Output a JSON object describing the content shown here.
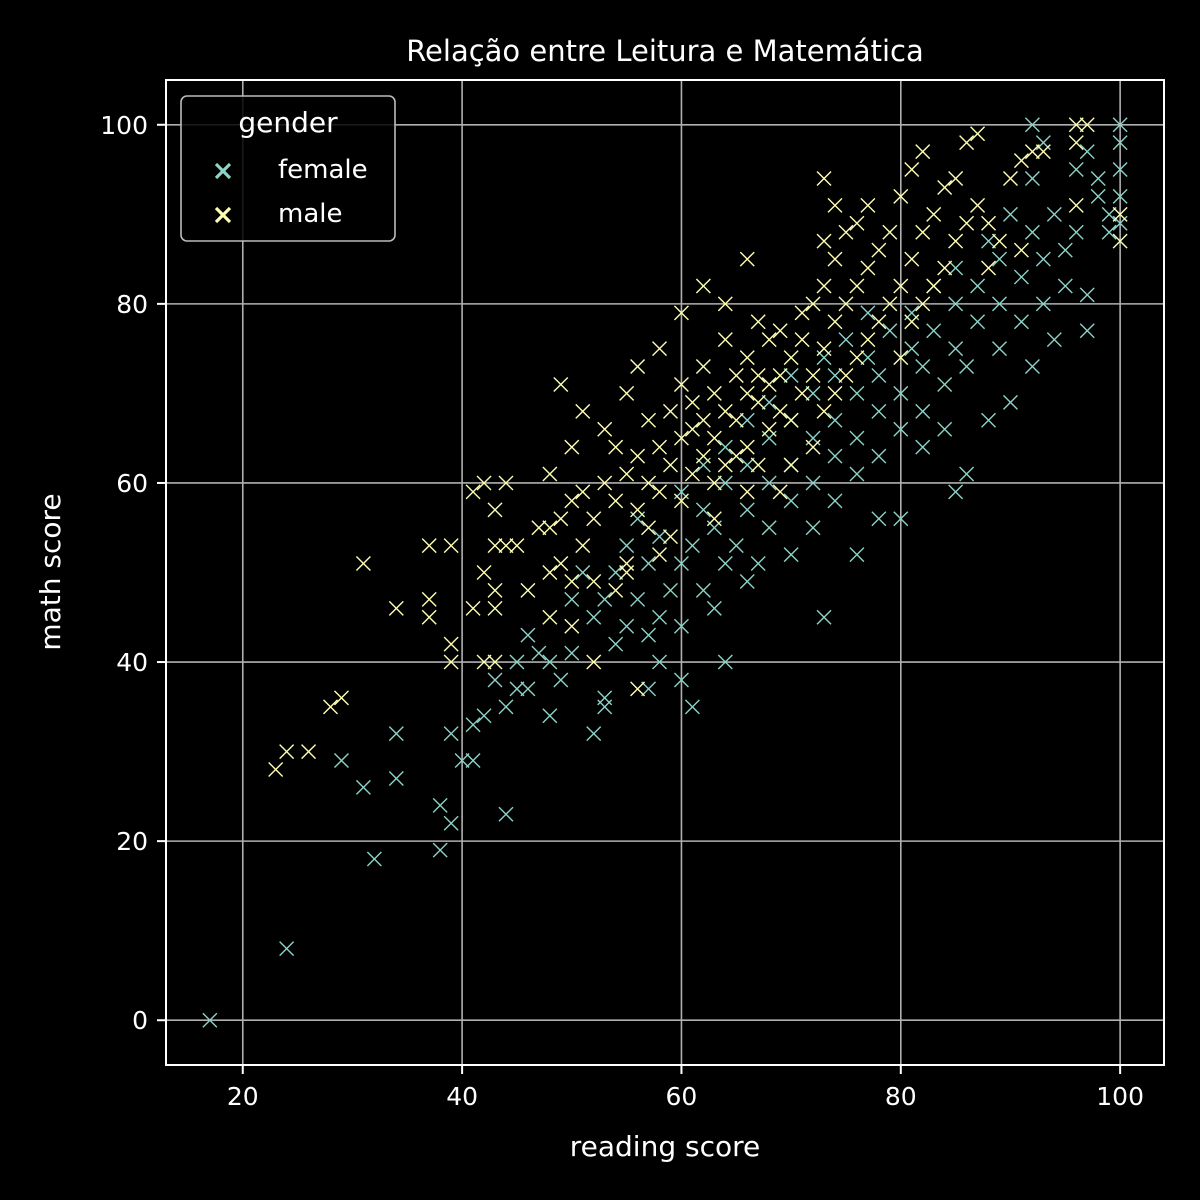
{
  "chart_data": {
    "type": "scatter",
    "title": "Relação entre Leitura e Matemática",
    "xlabel": "reading score",
    "ylabel": "math score",
    "xlim": [
      13,
      104
    ],
    "ylim": [
      -5,
      105
    ],
    "xticks": [
      20,
      40,
      60,
      80,
      100
    ],
    "yticks": [
      0,
      20,
      40,
      60,
      80,
      100
    ],
    "grid": true,
    "marker": "x",
    "legend": {
      "title": "gender",
      "placement": "top-left",
      "entries": [
        "female",
        "male"
      ]
    },
    "series": [
      {
        "name": "female",
        "color": "#8dd3c7",
        "points": [
          [
            17,
            0
          ],
          [
            24,
            8
          ],
          [
            32,
            18
          ],
          [
            38,
            19
          ],
          [
            39,
            22
          ],
          [
            44,
            23
          ],
          [
            38,
            24
          ],
          [
            31,
            26
          ],
          [
            34,
            27
          ],
          [
            29,
            29
          ],
          [
            40,
            29
          ],
          [
            41,
            29
          ],
          [
            34,
            32
          ],
          [
            39,
            32
          ],
          [
            52,
            32
          ],
          [
            41,
            33
          ],
          [
            42,
            34
          ],
          [
            48,
            34
          ],
          [
            44,
            35
          ],
          [
            53,
            35
          ],
          [
            61,
            35
          ],
          [
            53,
            36
          ],
          [
            45,
            37
          ],
          [
            46,
            37
          ],
          [
            57,
            37
          ],
          [
            43,
            38
          ],
          [
            49,
            38
          ],
          [
            60,
            38
          ],
          [
            45,
            40
          ],
          [
            48,
            40
          ],
          [
            58,
            40
          ],
          [
            64,
            40
          ],
          [
            47,
            41
          ],
          [
            50,
            41
          ],
          [
            54,
            42
          ],
          [
            57,
            43
          ],
          [
            46,
            43
          ],
          [
            55,
            44
          ],
          [
            60,
            44
          ],
          [
            52,
            45
          ],
          [
            58,
            45
          ],
          [
            73,
            45
          ],
          [
            63,
            46
          ],
          [
            50,
            47
          ],
          [
            53,
            47
          ],
          [
            56,
            47
          ],
          [
            59,
            48
          ],
          [
            62,
            48
          ],
          [
            66,
            49
          ],
          [
            51,
            50
          ],
          [
            54,
            50
          ],
          [
            57,
            51
          ],
          [
            60,
            51
          ],
          [
            64,
            51
          ],
          [
            67,
            51
          ],
          [
            70,
            52
          ],
          [
            55,
            53
          ],
          [
            61,
            53
          ],
          [
            65,
            53
          ],
          [
            76,
            52
          ],
          [
            58,
            54
          ],
          [
            63,
            55
          ],
          [
            68,
            55
          ],
          [
            72,
            55
          ],
          [
            78,
            56
          ],
          [
            56,
            56
          ],
          [
            62,
            57
          ],
          [
            66,
            57
          ],
          [
            70,
            58
          ],
          [
            74,
            58
          ],
          [
            80,
            56
          ],
          [
            85,
            59
          ],
          [
            60,
            59
          ],
          [
            64,
            60
          ],
          [
            68,
            60
          ],
          [
            72,
            60
          ],
          [
            76,
            61
          ],
          [
            86,
            61
          ],
          [
            62,
            62
          ],
          [
            66,
            62
          ],
          [
            70,
            62
          ],
          [
            74,
            63
          ],
          [
            78,
            63
          ],
          [
            82,
            64
          ],
          [
            64,
            64
          ],
          [
            68,
            65
          ],
          [
            72,
            65
          ],
          [
            76,
            65
          ],
          [
            80,
            66
          ],
          [
            84,
            66
          ],
          [
            66,
            67
          ],
          [
            70,
            67
          ],
          [
            74,
            67
          ],
          [
            78,
            68
          ],
          [
            82,
            68
          ],
          [
            88,
            67
          ],
          [
            68,
            69
          ],
          [
            72,
            70
          ],
          [
            76,
            70
          ],
          [
            80,
            70
          ],
          [
            84,
            71
          ],
          [
            90,
            69
          ],
          [
            70,
            72
          ],
          [
            74,
            72
          ],
          [
            78,
            72
          ],
          [
            82,
            73
          ],
          [
            86,
            73
          ],
          [
            92,
            73
          ],
          [
            73,
            74
          ],
          [
            77,
            74
          ],
          [
            81,
            75
          ],
          [
            85,
            75
          ],
          [
            89,
            75
          ],
          [
            94,
            76
          ],
          [
            75,
            76
          ],
          [
            79,
            77
          ],
          [
            83,
            77
          ],
          [
            87,
            78
          ],
          [
            91,
            78
          ],
          [
            97,
            77
          ],
          [
            77,
            79
          ],
          [
            81,
            79
          ],
          [
            85,
            80
          ],
          [
            89,
            80
          ],
          [
            93,
            80
          ],
          [
            95,
            82
          ],
          [
            83,
            82
          ],
          [
            87,
            82
          ],
          [
            91,
            83
          ],
          [
            97,
            81
          ],
          [
            85,
            84
          ],
          [
            89,
            85
          ],
          [
            93,
            85
          ],
          [
            95,
            86
          ],
          [
            88,
            87
          ],
          [
            92,
            88
          ],
          [
            96,
            88
          ],
          [
            99,
            88
          ],
          [
            90,
            90
          ],
          [
            94,
            90
          ],
          [
            98,
            92
          ],
          [
            100,
            92
          ],
          [
            92,
            94
          ],
          [
            96,
            95
          ],
          [
            100,
            95
          ],
          [
            93,
            98
          ],
          [
            97,
            97
          ],
          [
            100,
            98
          ],
          [
            92,
            100
          ],
          [
            100,
            100
          ],
          [
            100,
            89
          ],
          [
            98,
            94
          ],
          [
            99,
            90
          ]
        ]
      },
      {
        "name": "male",
        "color": "#ffffb3",
        "points": [
          [
            23,
            28
          ],
          [
            24,
            30
          ],
          [
            26,
            30
          ],
          [
            28,
            35
          ],
          [
            29,
            36
          ],
          [
            31,
            51
          ],
          [
            34,
            46
          ],
          [
            37,
            45
          ],
          [
            37,
            47
          ],
          [
            37,
            53
          ],
          [
            39,
            40
          ],
          [
            39,
            42
          ],
          [
            39,
            53
          ],
          [
            41,
            46
          ],
          [
            41,
            59
          ],
          [
            42,
            40
          ],
          [
            42,
            50
          ],
          [
            42,
            60
          ],
          [
            43,
            40
          ],
          [
            43,
            46
          ],
          [
            43,
            48
          ],
          [
            43,
            53
          ],
          [
            43,
            57
          ],
          [
            44,
            53
          ],
          [
            44,
            60
          ],
          [
            45,
            53
          ],
          [
            46,
            48
          ],
          [
            47,
            55
          ],
          [
            48,
            45
          ],
          [
            48,
            50
          ],
          [
            48,
            55
          ],
          [
            48,
            61
          ],
          [
            49,
            51
          ],
          [
            49,
            56
          ],
          [
            49,
            71
          ],
          [
            50,
            44
          ],
          [
            50,
            49
          ],
          [
            50,
            58
          ],
          [
            50,
            64
          ],
          [
            51,
            53
          ],
          [
            51,
            59
          ],
          [
            51,
            68
          ],
          [
            52,
            40
          ],
          [
            52,
            49
          ],
          [
            52,
            56
          ],
          [
            53,
            60
          ],
          [
            53,
            66
          ],
          [
            54,
            48
          ],
          [
            54,
            58
          ],
          [
            54,
            64
          ],
          [
            55,
            51
          ],
          [
            55,
            61
          ],
          [
            55,
            70
          ],
          [
            56,
            37
          ],
          [
            56,
            57
          ],
          [
            56,
            63
          ],
          [
            56,
            73
          ],
          [
            57,
            55
          ],
          [
            57,
            60
          ],
          [
            57,
            67
          ],
          [
            58,
            59
          ],
          [
            58,
            64
          ],
          [
            58,
            75
          ],
          [
            59,
            54
          ],
          [
            59,
            62
          ],
          [
            59,
            68
          ],
          [
            60,
            58
          ],
          [
            60,
            65
          ],
          [
            60,
            71
          ],
          [
            60,
            79
          ],
          [
            61,
            61
          ],
          [
            61,
            66
          ],
          [
            61,
            69
          ],
          [
            62,
            63
          ],
          [
            62,
            67
          ],
          [
            62,
            73
          ],
          [
            62,
            82
          ],
          [
            63,
            60
          ],
          [
            63,
            65
          ],
          [
            63,
            70
          ],
          [
            64,
            62
          ],
          [
            64,
            68
          ],
          [
            64,
            76
          ],
          [
            64,
            80
          ],
          [
            65,
            63
          ],
          [
            65,
            67
          ],
          [
            65,
            72
          ],
          [
            66,
            64
          ],
          [
            66,
            70
          ],
          [
            66,
            74
          ],
          [
            66,
            85
          ],
          [
            67,
            62
          ],
          [
            67,
            69
          ],
          [
            67,
            72
          ],
          [
            67,
            78
          ],
          [
            68,
            66
          ],
          [
            68,
            71
          ],
          [
            68,
            76
          ],
          [
            69,
            68
          ],
          [
            69,
            72
          ],
          [
            69,
            77
          ],
          [
            70,
            62
          ],
          [
            70,
            67
          ],
          [
            70,
            74
          ],
          [
            71,
            70
          ],
          [
            71,
            76
          ],
          [
            71,
            79
          ],
          [
            72,
            64
          ],
          [
            72,
            72
          ],
          [
            72,
            80
          ],
          [
            73,
            68
          ],
          [
            73,
            75
          ],
          [
            73,
            82
          ],
          [
            73,
            87
          ],
          [
            73,
            94
          ],
          [
            74,
            70
          ],
          [
            74,
            78
          ],
          [
            74,
            85
          ],
          [
            74,
            91
          ],
          [
            75,
            72
          ],
          [
            75,
            80
          ],
          [
            75,
            88
          ],
          [
            76,
            74
          ],
          [
            76,
            82
          ],
          [
            76,
            89
          ],
          [
            77,
            76
          ],
          [
            77,
            84
          ],
          [
            77,
            91
          ],
          [
            78,
            78
          ],
          [
            78,
            86
          ],
          [
            79,
            80
          ],
          [
            79,
            88
          ],
          [
            80,
            74
          ],
          [
            80,
            82
          ],
          [
            80,
            92
          ],
          [
            81,
            78
          ],
          [
            81,
            85
          ],
          [
            81,
            95
          ],
          [
            82,
            80
          ],
          [
            82,
            88
          ],
          [
            82,
            97
          ],
          [
            83,
            82
          ],
          [
            83,
            90
          ],
          [
            84,
            84
          ],
          [
            84,
            93
          ],
          [
            85,
            87
          ],
          [
            85,
            94
          ],
          [
            86,
            89
          ],
          [
            86,
            98
          ],
          [
            87,
            91
          ],
          [
            87,
            99
          ],
          [
            88,
            84
          ],
          [
            88,
            89
          ],
          [
            89,
            87
          ],
          [
            90,
            94
          ],
          [
            91,
            86
          ],
          [
            91,
            96
          ],
          [
            92,
            97
          ],
          [
            93,
            97
          ],
          [
            96,
            91
          ],
          [
            96,
            100
          ],
          [
            97,
            100
          ],
          [
            100,
            87
          ],
          [
            100,
            90
          ],
          [
            96,
            98
          ],
          [
            69,
            59
          ],
          [
            66,
            59
          ],
          [
            63,
            56
          ],
          [
            58,
            52
          ],
          [
            55,
            50
          ]
        ]
      }
    ]
  }
}
